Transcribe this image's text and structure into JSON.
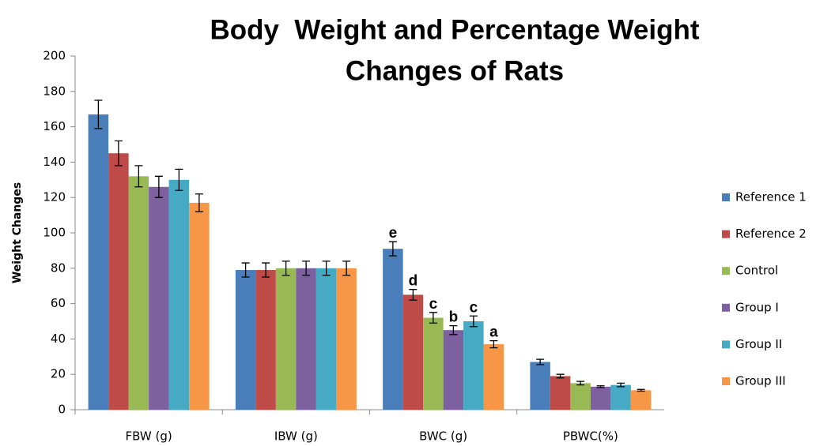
{
  "chart_data": {
    "type": "bar",
    "title": [
      "Body  Weight and Percentage Weight",
      "Changes of Rats"
    ],
    "ylabel": "Weight Changes",
    "categories": [
      "FBW (g)",
      "IBW (g)",
      "BWC (g)",
      "PBWC(%)"
    ],
    "ylim": [
      0,
      200
    ],
    "yticks": [
      0,
      20,
      40,
      60,
      80,
      100,
      120,
      140,
      160,
      180,
      200
    ],
    "grid": false,
    "legend": "right",
    "series": [
      {
        "name": "Reference 1",
        "color": "#4a7ebb",
        "values": [
          167,
          79,
          91,
          27
        ],
        "errors": [
          8,
          4,
          4,
          1.5
        ],
        "labels": [
          null,
          null,
          "e",
          null
        ]
      },
      {
        "name": "Reference 2",
        "color": "#be4b48",
        "values": [
          145,
          79,
          65,
          19
        ],
        "errors": [
          7,
          4,
          3,
          1
        ],
        "labels": [
          null,
          null,
          "d",
          null
        ]
      },
      {
        "name": "Control",
        "color": "#98b954",
        "values": [
          132,
          80,
          52,
          15
        ],
        "errors": [
          6,
          4,
          3,
          1
        ],
        "labels": [
          null,
          null,
          "c",
          null
        ]
      },
      {
        "name": "Group I",
        "color": "#7d60a0",
        "values": [
          126,
          80,
          45,
          13
        ],
        "errors": [
          6,
          4,
          2.5,
          0.5
        ],
        "labels": [
          null,
          null,
          "b",
          null
        ]
      },
      {
        "name": "Group II",
        "color": "#46aac5",
        "values": [
          130,
          80,
          50,
          14
        ],
        "errors": [
          6,
          4,
          3,
          1
        ],
        "labels": [
          null,
          null,
          "c",
          null
        ]
      },
      {
        "name": "Group III",
        "color": "#f79646",
        "values": [
          117,
          80,
          37,
          11
        ],
        "errors": [
          5,
          4,
          2,
          0.5
        ],
        "labels": [
          null,
          null,
          "a",
          null
        ]
      }
    ]
  }
}
